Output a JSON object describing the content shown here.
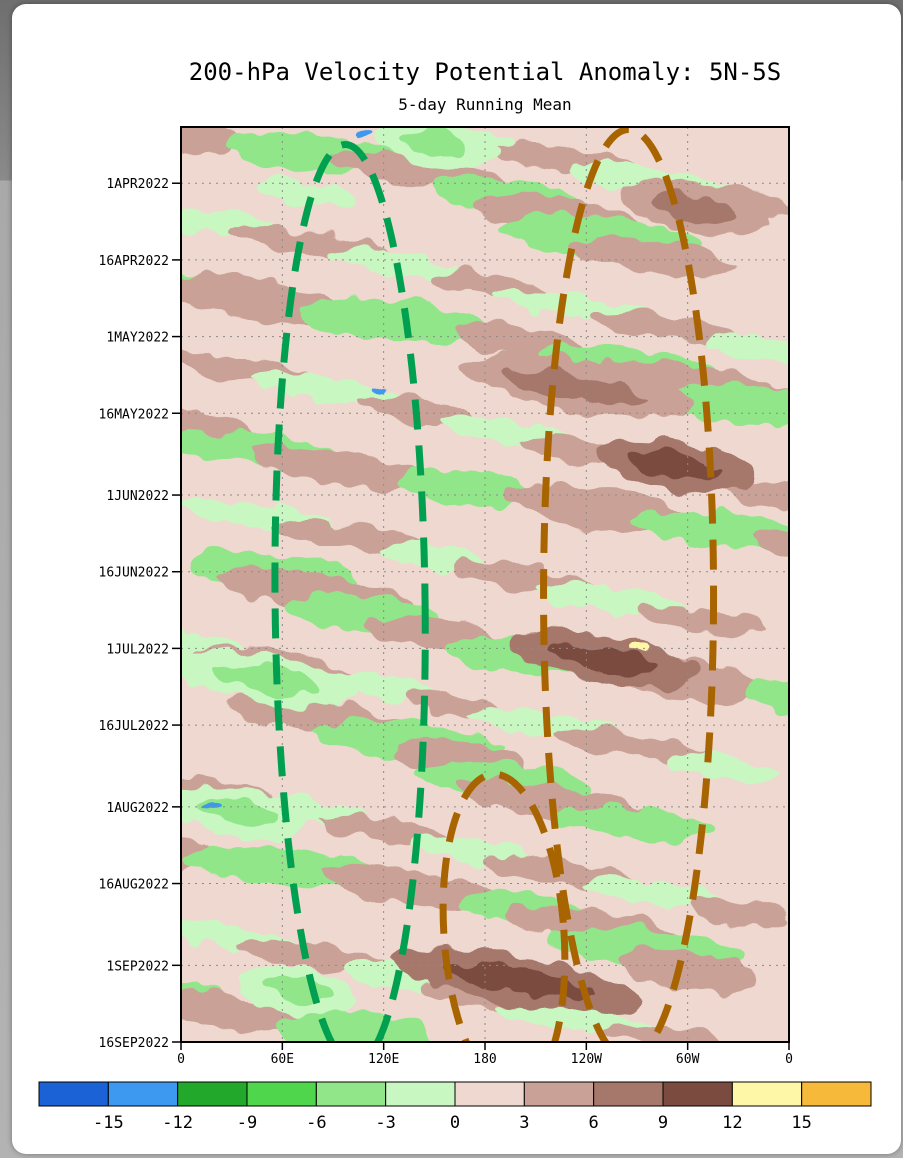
{
  "chart_data": {
    "type": "heatmap",
    "title": "200-hPa Velocity Potential Anomaly: 5N-5S",
    "subtitle": "5-day Running Mean",
    "y_tick_labels": [
      "1APR2022",
      "16APR2022",
      "1MAY2022",
      "16MAY2022",
      "1JUN2022",
      "16JUN2022",
      "1JUL2022",
      "16JUL2022",
      "1AUG2022",
      "16AUG2022",
      "1SEP2022",
      "16SEP2022"
    ],
    "x_tick_labels": [
      "0",
      "60E",
      "120E",
      "180",
      "120W",
      "60W",
      "0"
    ],
    "x_range_deg": [
      0,
      360
    ],
    "y_range": [
      "2022-03-21",
      "2022-09-16"
    ],
    "grid": "dotted",
    "colorbar": {
      "labels": [
        "-15",
        "-12",
        "-9",
        "-6",
        "-3",
        "0",
        "3",
        "6",
        "9",
        "12",
        "15"
      ],
      "colors": [
        "#1a62d6",
        "#3d98f0",
        "#22a82a",
        "#4fd64d",
        "#92e68a",
        "#c9f7c2",
        "#efd8cf",
        "#c9a196",
        "#a6786c",
        "#7c4b3f",
        "#fff7a8",
        "#f7b93a"
      ]
    },
    "bands": [
      {
        "date": "2022-03-24",
        "lon": [
          120,
          180
        ],
        "value": -6
      },
      {
        "date": "2022-04-03",
        "lon": [
          30,
          120
        ],
        "value": -3
      },
      {
        "date": "2022-04-06",
        "lon": [
          265,
          345
        ],
        "value": 6
      },
      {
        "date": "2022-05-11",
        "lon": [
          170,
          300
        ],
        "value": 6
      },
      {
        "date": "2022-05-26",
        "lon": [
          250,
          335
        ],
        "value": 9
      },
      {
        "date": "2022-07-03",
        "lon": [
          200,
          300
        ],
        "value": 9
      },
      {
        "date": "2022-07-07",
        "lon": [
          0,
          100
        ],
        "value": -6
      },
      {
        "date": "2022-08-02",
        "lon": [
          0,
          70
        ],
        "value": -6
      },
      {
        "date": "2022-09-04",
        "lon": [
          130,
          270
        ],
        "value": 9
      },
      {
        "date": "2022-09-06",
        "lon": [
          40,
          100
        ],
        "value": -6
      }
    ],
    "annotations": [
      {
        "type": "dashed-ellipse",
        "color": "green",
        "lon_center": 100,
        "date_range": [
          "2022-03-21",
          "2022-09-16"
        ]
      },
      {
        "type": "dashed-ellipse",
        "color": "brown",
        "lon_center": 265,
        "date_range": [
          "2022-03-21",
          "2022-09-16"
        ]
      },
      {
        "type": "dashed-ellipse",
        "color": "brown",
        "lon_center": 190,
        "date_range": [
          "2022-07-24",
          "2022-09-16"
        ]
      }
    ]
  },
  "colors": {
    "neutral_neg": "#c9f7c2",
    "neutral_pos": "#efd8cf",
    "green_ellipse": "#00a050",
    "brown_ellipse": "#a86400"
  }
}
